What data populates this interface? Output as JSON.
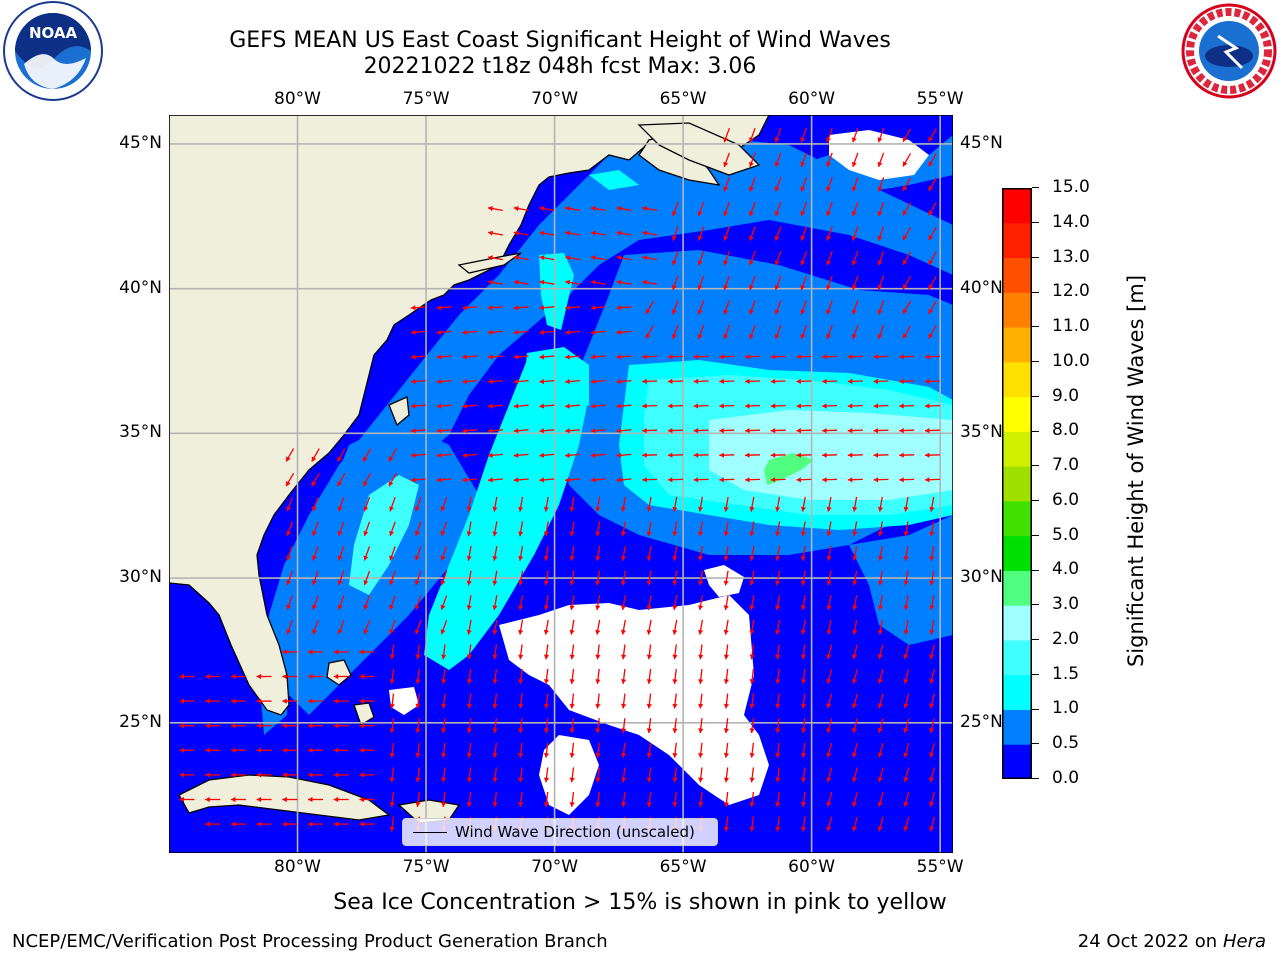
{
  "title_line1": "GEFS MEAN US East Coast Significant Height of Wind Waves",
  "title_line2": "20221022 t18z 048h fcst   Max: 3.06",
  "map": {
    "lon_range": [
      -85,
      -54.5
    ],
    "lat_range": [
      20.5,
      46
    ],
    "x_ticks": [
      {
        "lon": -80,
        "label": "80°W"
      },
      {
        "lon": -75,
        "label": "75°W"
      },
      {
        "lon": -70,
        "label": "70°W"
      },
      {
        "lon": -65,
        "label": "65°W"
      },
      {
        "lon": -60,
        "label": "60°W"
      },
      {
        "lon": -55,
        "label": "55°W"
      }
    ],
    "y_ticks": [
      {
        "lat": 45,
        "label": "45°N"
      },
      {
        "lat": 40,
        "label": "40°N"
      },
      {
        "lat": 35,
        "label": "35°N"
      },
      {
        "lat": 30,
        "label": "30°N"
      },
      {
        "lat": 25,
        "label": "25°N"
      }
    ],
    "gridlines": true,
    "colors": {
      "land": "#efefdc",
      "ocean_low": "#0000ff",
      "coast": "#000000",
      "grid": "#b4b4b4",
      "arrows": "#ff0000",
      "missing": "#ffffff"
    }
  },
  "colorbar": {
    "label": "Significant Height of Wind Waves [m]",
    "tick_labels": [
      "0.0",
      "0.5",
      "1.0",
      "1.5",
      "2.0",
      "3.0",
      "4.0",
      "5.0",
      "6.0",
      "7.0",
      "8.0",
      "9.0",
      "10.0",
      "11.0",
      "12.0",
      "13.0",
      "14.0",
      "15.0"
    ],
    "colors": [
      "#0000ff",
      "#0080ff",
      "#00ffff",
      "#40ffff",
      "#a0ffff",
      "#50ff80",
      "#00e000",
      "#40e000",
      "#a0e000",
      "#d0f000",
      "#ffff00",
      "#ffe000",
      "#ffb000",
      "#ff8000",
      "#ff5000",
      "#ff2000",
      "#ff0000"
    ]
  },
  "legend": {
    "label": "Wind Wave Direction (unscaled)",
    "placement": "bottom-center"
  },
  "note": "Sea Ice Concentration > 15% is shown in pink to yellow",
  "footer": {
    "left": "NCEP/EMC/Verification Post Processing Product Generation Branch",
    "right_date": "24 Oct 2022 on",
    "right_host": "Hera"
  },
  "logos": {
    "left": "noaa-logo",
    "right": "nws-logo"
  }
}
